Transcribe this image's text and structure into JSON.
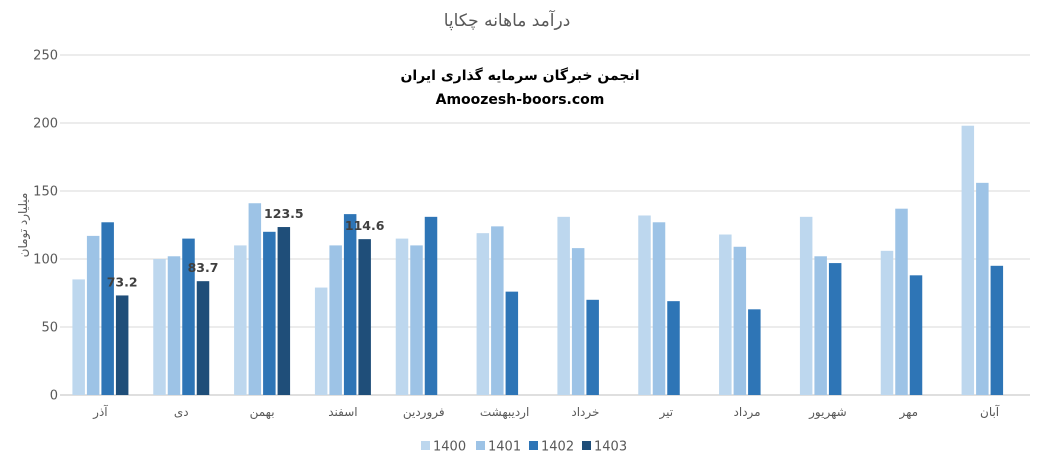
{
  "chart_data": {
    "type": "bar",
    "title": "درآمد ماهانه چکاپا",
    "overlay_lines": [
      "انجمن خبرگان سرمایه گذاری ایران",
      "Amoozesh-boors.com"
    ],
    "ylabel": "میلیارد تومان",
    "xlabel": "",
    "ylim": [
      0,
      250
    ],
    "yticks": [
      "0",
      "50",
      "100",
      "150",
      "200",
      "250"
    ],
    "grid": true,
    "legend_position": "bottom",
    "categories": [
      "آذر",
      "دی",
      "بهمن",
      "اسفند",
      "فروردین",
      "اردیبهشت",
      "خرداد",
      "تیر",
      "مرداد",
      "شهریور",
      "مهر",
      "آبان"
    ],
    "series": [
      {
        "name": "1400",
        "color": "#BDD7EE",
        "values": [
          85,
          100,
          110,
          79,
          115,
          119,
          131,
          132,
          118,
          131,
          106,
          198
        ],
        "labels": [
          null,
          null,
          null,
          null,
          null,
          null,
          null,
          null,
          null,
          null,
          null,
          null
        ]
      },
      {
        "name": "1401",
        "color": "#9DC3E6",
        "values": [
          117,
          102,
          141,
          110,
          110,
          124,
          108,
          127,
          109,
          102,
          137,
          156
        ],
        "labels": [
          null,
          null,
          null,
          null,
          null,
          null,
          null,
          null,
          null,
          null,
          null,
          null
        ]
      },
      {
        "name": "1402",
        "color": "#2E75B6",
        "values": [
          127,
          115,
          120,
          133,
          131,
          76,
          70,
          69,
          63,
          97,
          88,
          95
        ],
        "labels": [
          null,
          null,
          null,
          null,
          null,
          null,
          null,
          null,
          null,
          null,
          null,
          null
        ]
      },
      {
        "name": "1403",
        "color": "#1F4E79",
        "values": [
          73.2,
          83.7,
          123.5,
          114.6,
          null,
          null,
          null,
          null,
          null,
          null,
          null,
          null
        ],
        "labels": [
          "73.2",
          "83.7",
          "123.5",
          "114.6",
          null,
          null,
          null,
          null,
          null,
          null,
          null,
          null
        ]
      }
    ]
  }
}
